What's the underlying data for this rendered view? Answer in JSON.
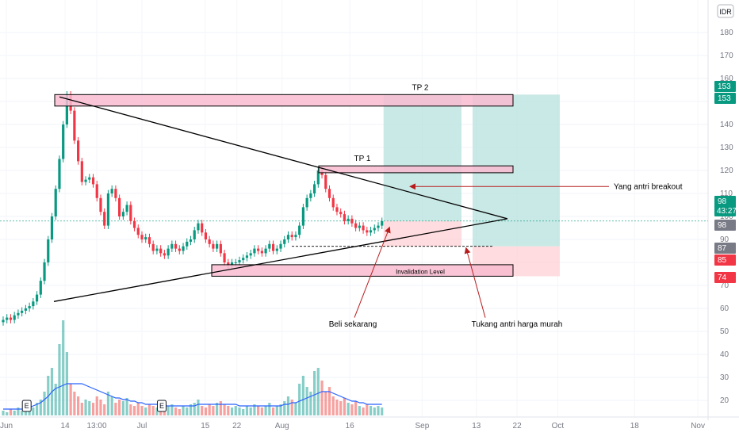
{
  "chart_data": {
    "type": "candlestick",
    "currency": "IDR",
    "ylim": [
      15,
      190
    ],
    "y_ticks": [
      20,
      30,
      40,
      50,
      60,
      70,
      80,
      90,
      100,
      110,
      120,
      130,
      140,
      150,
      160,
      170,
      180
    ],
    "x_tick_labels": [
      {
        "label": "Jun",
        "date": "2024-06-01"
      },
      {
        "label": "14",
        "date": "2024-06-14"
      },
      {
        "label": "13:00",
        "date": "2024-06-21"
      },
      {
        "label": "Jul",
        "date": "2024-07-01"
      },
      {
        "label": "15",
        "date": "2024-07-15"
      },
      {
        "label": "22",
        "date": "2024-07-22"
      },
      {
        "label": "Aug",
        "date": "2024-08-01"
      },
      {
        "label": "16",
        "date": "2024-08-16"
      },
      {
        "label": "Sep",
        "date": "2024-09-01"
      },
      {
        "label": "13",
        "date": "2024-09-13"
      },
      {
        "label": "22",
        "date": "2024-09-22"
      },
      {
        "label": "Oct",
        "date": "2024-10-01"
      },
      {
        "label": "18",
        "date": "2024-10-18"
      },
      {
        "label": "Nov",
        "date": "2024-11-01"
      }
    ],
    "close": [
      55,
      56,
      55,
      57,
      58,
      59,
      60,
      61,
      63,
      66,
      72,
      80,
      90,
      100,
      112,
      125,
      140,
      153,
      146,
      133,
      124,
      115,
      116,
      117,
      114,
      108,
      102,
      96,
      110,
      112,
      108,
      100,
      102,
      105,
      98,
      95,
      92,
      90,
      91,
      88,
      85,
      86,
      84,
      83,
      86,
      88,
      86,
      85,
      87,
      89,
      90,
      94,
      97,
      93,
      90,
      88,
      86,
      88,
      84,
      80,
      79,
      80,
      80,
      81,
      82,
      83,
      84,
      86,
      85,
      84,
      86,
      88,
      85,
      86,
      88,
      90,
      92,
      91,
      92,
      96,
      104,
      108,
      110,
      114,
      120,
      118,
      112,
      108,
      104,
      102,
      101,
      98,
      99,
      97,
      95,
      96,
      94,
      93,
      94,
      95,
      96,
      98
    ],
    "last_price": 98,
    "countdown": "43:27",
    "volume": [
      3,
      2,
      4,
      3,
      5,
      3,
      4,
      6,
      5,
      8,
      10,
      15,
      25,
      30,
      20,
      45,
      60,
      40,
      20,
      15,
      12,
      8,
      10,
      9,
      8,
      12,
      10,
      7,
      15,
      12,
      8,
      10,
      9,
      11,
      7,
      6,
      8,
      6,
      5,
      7,
      6,
      5,
      6,
      5,
      6,
      7,
      5,
      4,
      6,
      5,
      7,
      8,
      10,
      6,
      5,
      7,
      6,
      8,
      9,
      7,
      6,
      5,
      6,
      5,
      4,
      6,
      5,
      7,
      6,
      5,
      6,
      8,
      5,
      6,
      7,
      9,
      12,
      10,
      8,
      20,
      25,
      18,
      15,
      28,
      30,
      22,
      15,
      18,
      12,
      10,
      9,
      11,
      8,
      7,
      9,
      6,
      5,
      7,
      6,
      5,
      6,
      5
    ],
    "volume_ma": [
      4,
      4,
      4,
      4,
      4,
      4,
      5,
      5,
      6,
      7,
      8,
      10,
      12,
      15,
      17,
      18,
      19,
      20,
      20,
      20,
      20,
      20,
      19,
      18,
      17,
      16,
      15,
      14,
      13,
      12,
      11,
      11,
      10,
      10,
      9,
      9,
      8,
      8,
      7,
      7,
      7,
      7,
      6,
      6,
      6,
      6,
      6,
      6,
      6,
      6,
      6,
      6,
      7,
      7,
      7,
      7,
      7,
      7,
      7,
      7,
      7,
      7,
      7,
      6,
      6,
      6,
      6,
      6,
      6,
      6,
      6,
      6,
      6,
      6,
      6,
      7,
      7,
      8,
      8,
      9,
      10,
      11,
      12,
      13,
      14,
      15,
      15,
      15,
      14,
      13,
      12,
      11,
      10,
      9,
      9,
      8,
      8,
      7,
      7,
      7,
      7,
      7
    ],
    "price_tags": [
      {
        "value": "153",
        "color": "#089981"
      },
      {
        "value": "153",
        "color": "#089981"
      },
      {
        "value": "98",
        "color": "#089981"
      },
      {
        "value": "98",
        "color": "#787b86"
      },
      {
        "value": "87",
        "color": "#787b86"
      },
      {
        "value": "85",
        "color": "#f23645"
      },
      {
        "value": "74",
        "color": "#f23645"
      }
    ],
    "annotations": {
      "tp2": "TP 2",
      "tp1": "TP 1",
      "invalidation": "Invalidation Level",
      "breakout": "Yang antri breakout",
      "buy_now": "Beli sekarang",
      "cheap": "Tukang antri harga murah",
      "event_marker": "E"
    },
    "levels": {
      "tp2_zone": [
        148,
        153
      ],
      "tp1_zone": [
        119,
        122
      ],
      "invalidation_zone": [
        74,
        79
      ],
      "entry": 98,
      "stop": 87,
      "support_dashed": 87
    },
    "colors": {
      "up": "#089981",
      "down": "#f23645",
      "volume_up": "#26a69a",
      "volume_down": "#ef5350",
      "volume_ma": "#2962ff",
      "zone_fill": "#f8bbd0",
      "target_fill": "#b2dfdb",
      "risk_fill": "#ffcdd2",
      "arrow": "#b71c1c"
    }
  }
}
